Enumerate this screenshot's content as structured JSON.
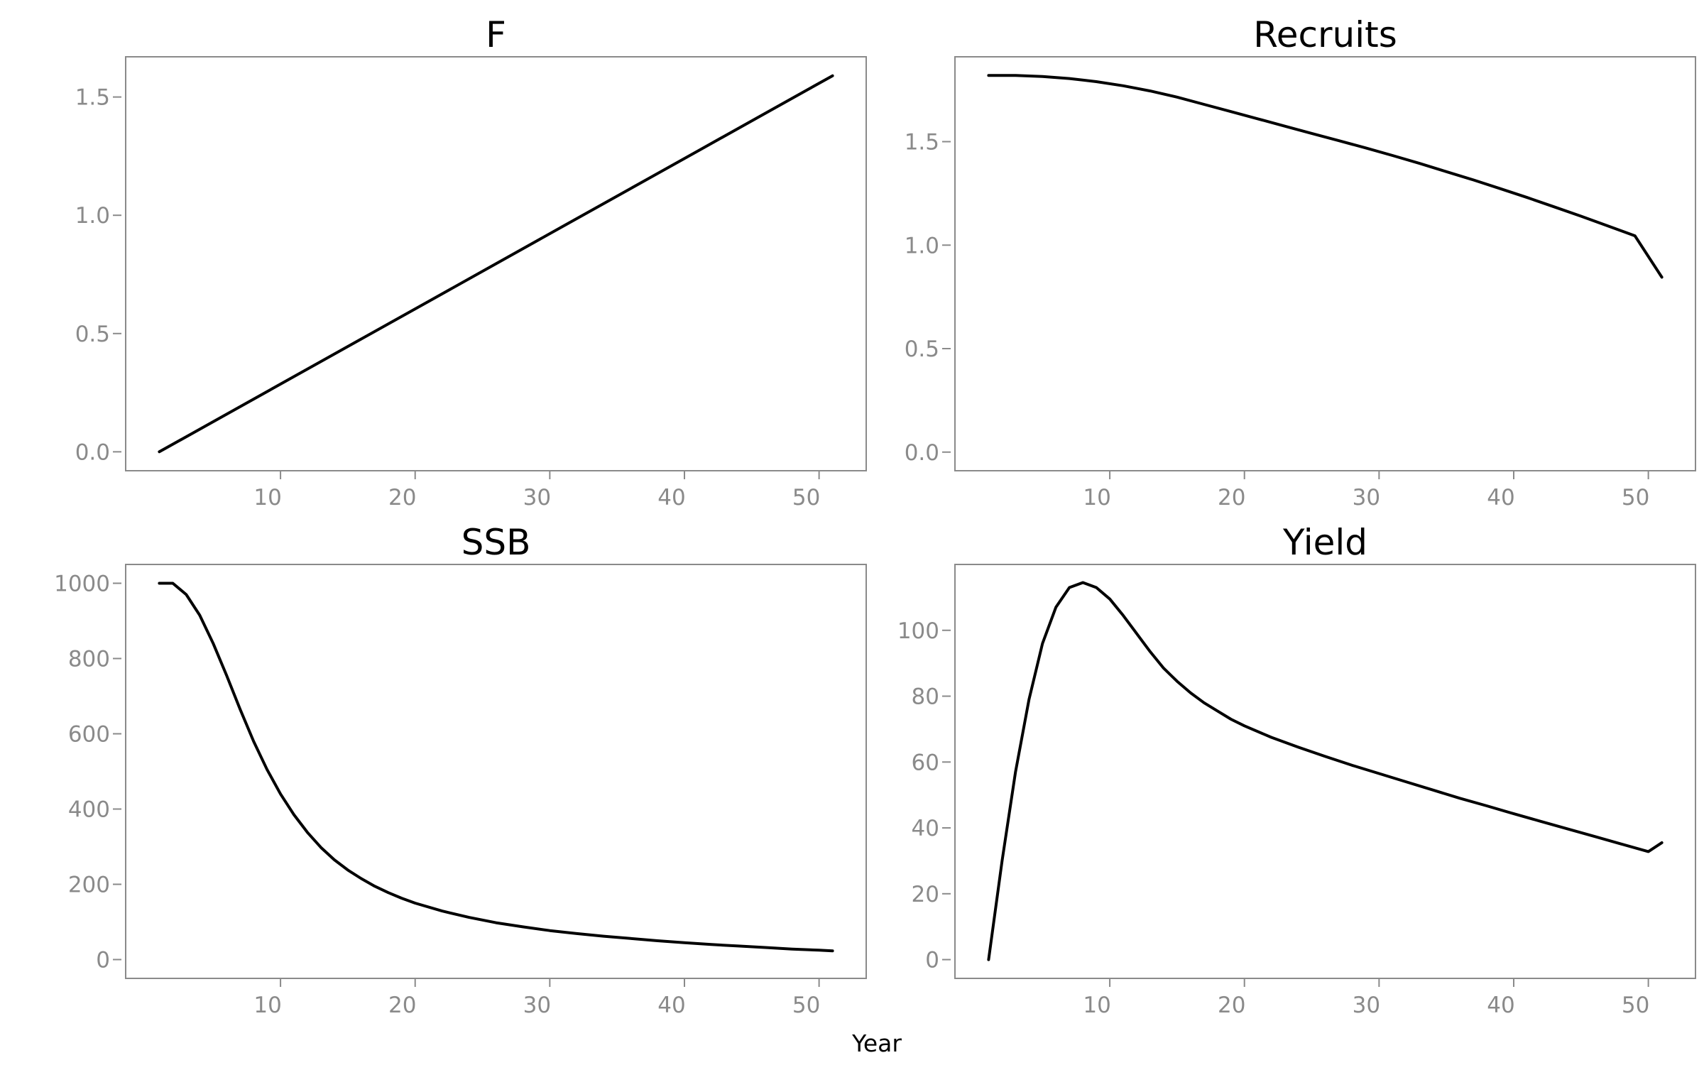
{
  "figure": {
    "xlabel": "Year",
    "colors": {
      "line": "#000000",
      "axis": "#8a8a8a",
      "title": "#000000"
    }
  },
  "chart_data": [
    {
      "type": "line",
      "title": "F",
      "xlabel": "",
      "ylabel": "",
      "xlim": [
        -1.5,
        53.5
      ],
      "ylim": [
        -0.08,
        1.67
      ],
      "xticks": [
        10,
        20,
        30,
        40,
        50
      ],
      "xtick_labels": [
        "10",
        "20",
        "30",
        "40",
        "50"
      ],
      "yticks": [
        0.0,
        0.5,
        1.0,
        1.5
      ],
      "ytick_labels": [
        "0.0",
        "0.5",
        "1.0",
        "1.5"
      ],
      "grid": false,
      "series": [
        {
          "x": [
            1,
            6,
            11,
            16,
            21,
            26,
            31,
            36,
            41,
            46,
            51
          ],
          "y": [
            0.0,
            0.159,
            0.318,
            0.477,
            0.636,
            0.795,
            0.954,
            1.113,
            1.272,
            1.431,
            1.59
          ]
        }
      ]
    },
    {
      "type": "line",
      "title": "Recruits",
      "xlabel": "",
      "ylabel": "",
      "xlim": [
        -1.5,
        53.5
      ],
      "ylim": [
        -0.09,
        1.91
      ],
      "xticks": [
        10,
        20,
        30,
        40,
        50
      ],
      "xtick_labels": [
        "10",
        "20",
        "30",
        "40",
        "50"
      ],
      "yticks": [
        0.0,
        0.5,
        1.0,
        1.5
      ],
      "ytick_labels": [
        "0.0",
        "0.5",
        "1.0",
        "1.5"
      ],
      "grid": false,
      "series": [
        {
          "x": [
            1,
            3,
            5,
            7,
            9,
            11,
            13,
            15,
            17,
            19,
            21,
            23,
            25,
            27,
            29,
            31,
            33,
            35,
            37,
            39,
            41,
            43,
            45,
            47,
            49,
            51
          ],
          "y": [
            1.82,
            1.82,
            1.815,
            1.805,
            1.79,
            1.77,
            1.745,
            1.715,
            1.68,
            1.645,
            1.61,
            1.575,
            1.54,
            1.505,
            1.47,
            1.433,
            1.395,
            1.355,
            1.315,
            1.273,
            1.23,
            1.185,
            1.14,
            1.093,
            1.045,
            0.845
          ]
        }
      ]
    },
    {
      "type": "line",
      "title": "SSB",
      "xlabel": "",
      "ylabel": "",
      "xlim": [
        -1.5,
        53.5
      ],
      "ylim": [
        -50,
        1050
      ],
      "xticks": [
        10,
        20,
        30,
        40,
        50
      ],
      "xtick_labels": [
        "10",
        "20",
        "30",
        "40",
        "50"
      ],
      "yticks": [
        0,
        200,
        400,
        600,
        800,
        1000
      ],
      "ytick_labels": [
        "0",
        "200",
        "400",
        "600",
        "800",
        "1000"
      ],
      "grid": false,
      "series": [
        {
          "x": [
            1,
            2,
            3,
            4,
            5,
            6,
            7,
            8,
            9,
            10,
            11,
            12,
            13,
            14,
            15,
            16,
            17,
            18,
            19,
            20,
            22,
            24,
            26,
            28,
            30,
            32,
            34,
            36,
            38,
            40,
            42,
            44,
            46,
            48,
            50,
            51
          ],
          "y": [
            1000,
            1000,
            970,
            915,
            840,
            755,
            665,
            580,
            505,
            440,
            385,
            338,
            298,
            265,
            238,
            215,
            195,
            178,
            163,
            150,
            129,
            112,
            98,
            87,
            77,
            69,
            62,
            56,
            50,
            45,
            40,
            36,
            32,
            28,
            25,
            23
          ]
        }
      ]
    },
    {
      "type": "line",
      "title": "Yield",
      "xlabel": "",
      "ylabel": "",
      "xlim": [
        -1.5,
        53.5
      ],
      "ylim": [
        -5.7,
        120
      ],
      "xticks": [
        10,
        20,
        30,
        40,
        50
      ],
      "xtick_labels": [
        "10",
        "20",
        "30",
        "40",
        "50"
      ],
      "yticks": [
        0,
        20,
        40,
        60,
        80,
        100
      ],
      "ytick_labels": [
        "0",
        "20",
        "40",
        "60",
        "80",
        "100"
      ],
      "grid": false,
      "series": [
        {
          "x": [
            1,
            2,
            3,
            4,
            5,
            6,
            7,
            8,
            9,
            10,
            11,
            12,
            13,
            14,
            15,
            16,
            17,
            18,
            19,
            20,
            22,
            24,
            26,
            28,
            30,
            32,
            34,
            36,
            38,
            40,
            42,
            44,
            46,
            48,
            50,
            51
          ],
          "y": [
            0,
            30,
            57,
            79,
            96,
            107,
            113,
            114.5,
            113,
            109.5,
            104.5,
            99,
            93.5,
            88.5,
            84.5,
            81,
            78,
            75.5,
            73,
            71,
            67.5,
            64.5,
            61.7,
            59,
            56.5,
            54,
            51.5,
            49,
            46.7,
            44.3,
            42,
            39.7,
            37.4,
            35.1,
            32.8,
            35.5
          ]
        }
      ]
    }
  ]
}
